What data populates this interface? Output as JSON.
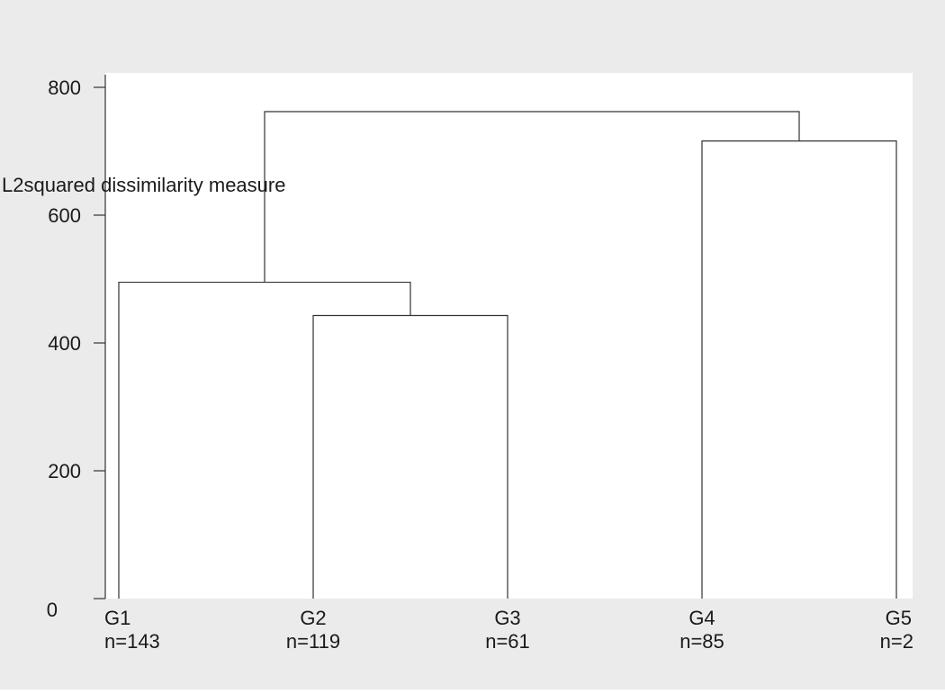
{
  "chart_data": {
    "type": "dendrogram",
    "title": "",
    "ylabel": "L2squared dissimilarity measure",
    "xlabel": "",
    "ylim": [
      0,
      800
    ],
    "yticks": [
      0,
      200,
      400,
      600,
      800
    ],
    "grid": false,
    "leaves": [
      {
        "name": "G1",
        "count_label": "n=143"
      },
      {
        "name": "G2",
        "count_label": "n=119"
      },
      {
        "name": "G3",
        "count_label": "n=61"
      },
      {
        "name": "G4",
        "count_label": "n=85"
      },
      {
        "name": "G5",
        "count_label": "n=2"
      }
    ],
    "merges": [
      {
        "children": [
          "G2",
          "G3"
        ],
        "height": 443
      },
      {
        "children": [
          "G1",
          "G2+G3"
        ],
        "height": 495
      },
      {
        "children": [
          "G4",
          "G5"
        ],
        "height": 716
      },
      {
        "children": [
          "G1+G2+G3",
          "G4+G5"
        ],
        "height": 762
      }
    ],
    "colors": {
      "outer_background": "#ebebeb",
      "plot_background": "#ffffff",
      "line": "#333333",
      "text": "#1a1a1a"
    }
  }
}
